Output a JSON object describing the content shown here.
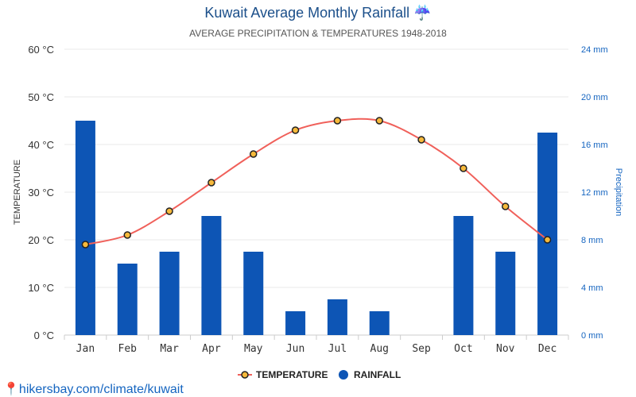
{
  "title": "Kuwait Average Monthly Rainfall",
  "title_icon": "umbrella-rain-icon",
  "subtitle": "AVERAGE PRECIPITATION & TEMPERATURES 1948-2018",
  "footer": "hikersbay.com/climate/kuwait",
  "footer_icon": "location-pin-icon",
  "chart_data": {
    "type": "bar+line",
    "categories": [
      "Jan",
      "Feb",
      "Mar",
      "Apr",
      "May",
      "Jun",
      "Jul",
      "Aug",
      "Sep",
      "Oct",
      "Nov",
      "Dec"
    ],
    "series": [
      {
        "name": "TEMPERATURE",
        "type": "line",
        "axis": "left",
        "color": "#f0605a",
        "values": [
          19,
          21,
          26,
          32,
          38,
          43,
          45,
          45,
          41,
          35,
          27,
          20
        ]
      },
      {
        "name": "RAINFALL",
        "type": "bar",
        "axis": "right",
        "color": "#0d55b5",
        "values": [
          18,
          6,
          7,
          10,
          7,
          2,
          3,
          2,
          0,
          10,
          7,
          17
        ]
      }
    ],
    "ylabel_left": "TEMPERATURE",
    "ylabel_right": "Precipitation",
    "ylim_left": [
      0,
      60
    ],
    "ylim_right": [
      0,
      24
    ],
    "yticks_left": [
      "0 °C",
      "10 °C",
      "20 °C",
      "30 °C",
      "40 °C",
      "50 °C",
      "60 °C"
    ],
    "yticks_right": [
      "0 mm",
      "4 mm",
      "8 mm",
      "12 mm",
      "16 mm",
      "20 mm",
      "24 mm"
    ],
    "grid": true,
    "legend": "bottom-center"
  }
}
